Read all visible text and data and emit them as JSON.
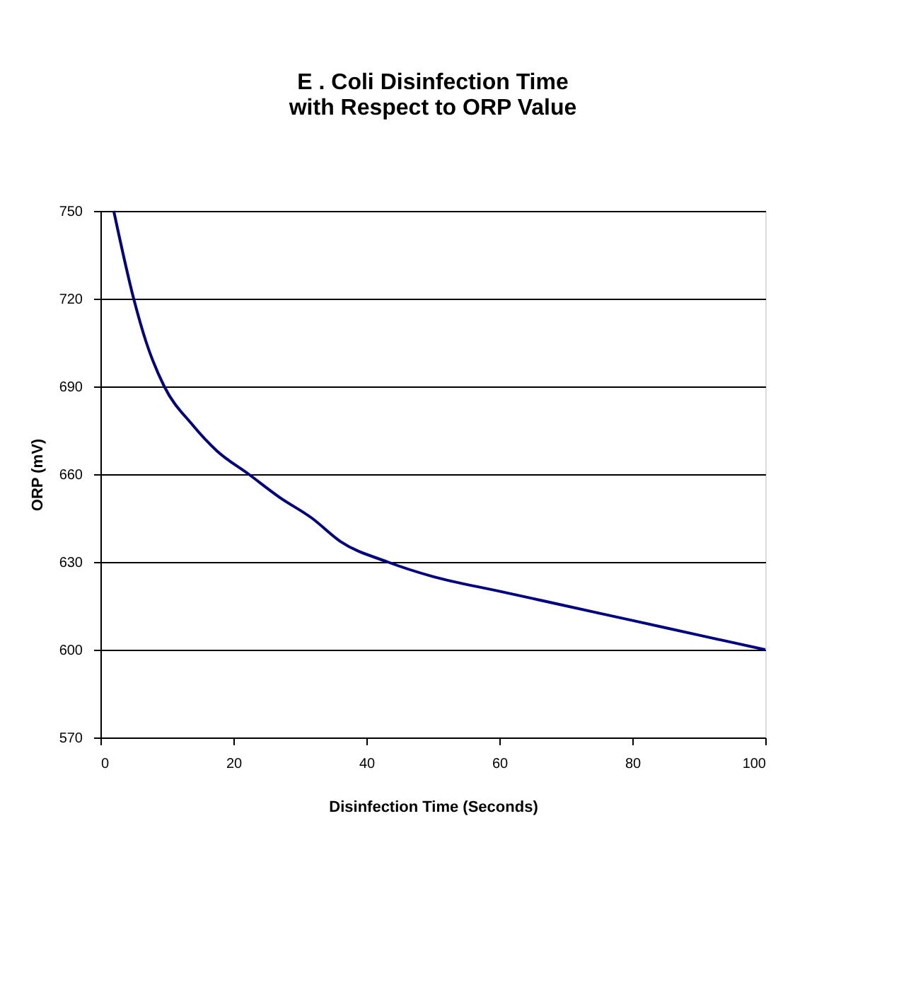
{
  "chart_data": {
    "type": "line",
    "title": "E . Coli Disinfection Time\nwith Respect to ORP Value",
    "xlabel": "Disinfection Time (Seconds)",
    "ylabel": "ORP (mV)",
    "series": [
      {
        "color": "#000080",
        "x": [
          2,
          5,
          6.9,
          9.6,
          13.8,
          17.5,
          22.3,
          27,
          31.8,
          36.1,
          43.2,
          50,
          60,
          70,
          80,
          90,
          100
        ],
        "values": [
          750,
          720,
          705,
          690,
          677,
          668,
          660,
          652,
          645,
          637,
          630,
          625,
          620,
          615,
          610,
          605,
          600
        ]
      }
    ],
    "xlim": [
      0,
      100
    ],
    "xticks": [
      0,
      20,
      40,
      60,
      80,
      100
    ],
    "ylim": [
      570,
      750
    ],
    "yticks": [
      570,
      600,
      630,
      660,
      690,
      720,
      750
    ],
    "grid": "y",
    "legend": false,
    "marker": "none",
    "line_style": "solid"
  }
}
